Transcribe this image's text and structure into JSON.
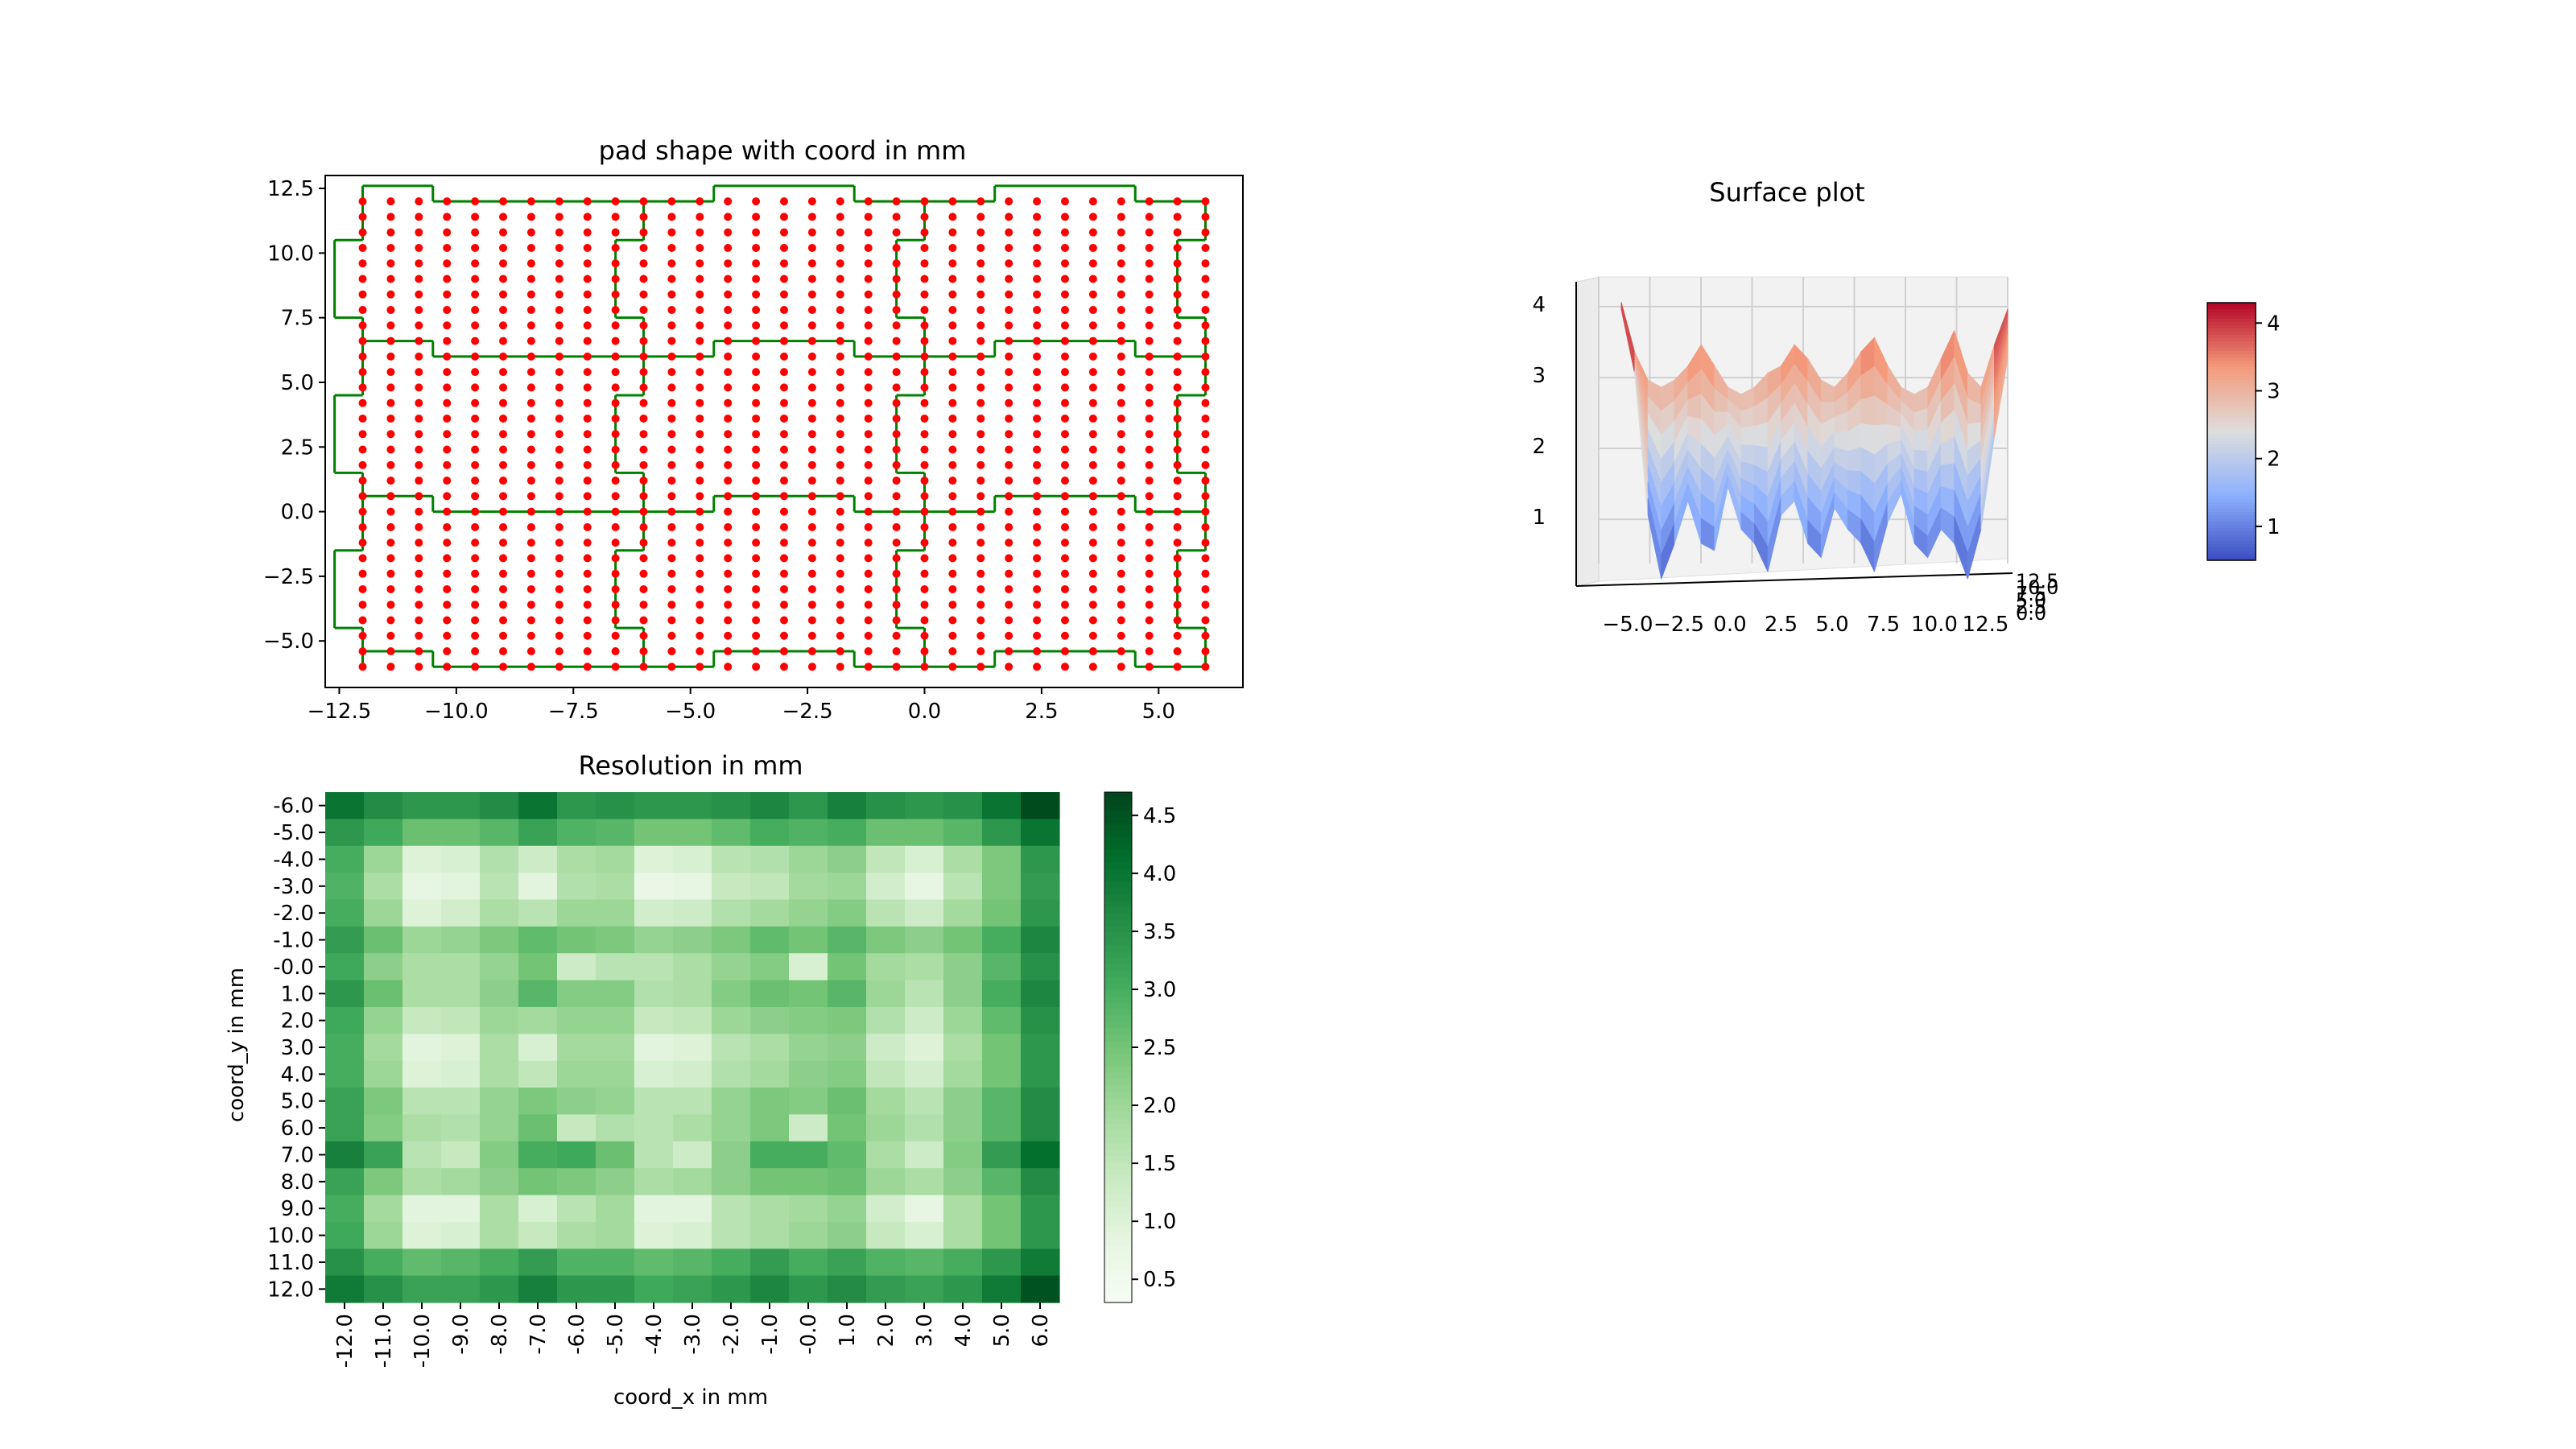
{
  "chart_data": [
    {
      "type": "scatter",
      "title": "pad shape with coord in mm",
      "xlim": [
        -12.8,
        6.8
      ],
      "ylim": [
        -6.8,
        13.0
      ],
      "x_ticks": [
        "−12.5",
        "−10.0",
        "−7.5",
        "−5.0",
        "−2.5",
        "0.0",
        "2.5",
        "5.0"
      ],
      "x_tick_values": [
        -12.5,
        -10,
        -7.5,
        -5,
        -2.5,
        0,
        2.5,
        5
      ],
      "y_ticks": [
        "12.5",
        "10.0",
        "7.5",
        "5.0",
        "2.5",
        "0.0",
        "−2.5",
        "−5.0"
      ],
      "y_tick_values": [
        12.5,
        10,
        7.5,
        5,
        2.5,
        0,
        -2.5,
        -5
      ],
      "points": {
        "x_min": -12,
        "x_max": 6,
        "x_step": 0.6,
        "y_min": -6,
        "y_max": 12,
        "y_step": 0.6,
        "color": "#ff0000"
      },
      "boundary_color": "#008000",
      "rows": [
        {
          "bottom": 6,
          "top": 12
        },
        {
          "bottom": 0,
          "top": 6
        },
        {
          "bottom": -6,
          "top": 0
        }
      ],
      "row_top_steps": [
        [
          -12,
          -10.5
        ],
        [
          -4.5,
          -1.5
        ],
        [
          1.5,
          4.5
        ]
      ],
      "left_edge": {
        "x": -12,
        "tab_x": -12.6,
        "tab_y": [
          1.5,
          4.5
        ]
      },
      "right_edge": {
        "x": 6,
        "tab_x": 5.4,
        "tab_y": [
          1.5,
          4.5
        ]
      },
      "column_boundaries": [
        {
          "x": -6,
          "tab_x": -6.6,
          "tab_y": [
            1.5,
            4.5
          ]
        },
        {
          "x": 0,
          "tab_x": -0.6,
          "tab_y": [
            1.5,
            4.5
          ]
        }
      ]
    },
    {
      "type": "heatmap",
      "title": "Resolution in mm",
      "xlabel": "coord_x in mm",
      "ylabel": "coord_y in mm",
      "x_categories": [
        "-12.0",
        "-11.0",
        "-10.0",
        "-9.0",
        "-8.0",
        "-7.0",
        "-6.0",
        "-5.0",
        "-4.0",
        "-3.0",
        "-2.0",
        "-1.0",
        "-0.0",
        "1.0",
        "2.0",
        "3.0",
        "4.0",
        "5.0",
        "6.0"
      ],
      "y_categories": [
        "-6.0",
        "-5.0",
        "-4.0",
        "-3.0",
        "-2.0",
        "-1.0",
        "-0.0",
        "1.0",
        "2.0",
        "3.0",
        "4.0",
        "5.0",
        "6.0",
        "7.0",
        "8.0",
        "9.0",
        "10.0",
        "11.0",
        "12.0"
      ],
      "values": [
        [
          4.0,
          3.6,
          3.4,
          3.4,
          3.6,
          4.0,
          3.4,
          3.5,
          3.4,
          3.4,
          3.5,
          3.7,
          3.4,
          3.8,
          3.5,
          3.4,
          3.5,
          4.0,
          4.6
        ],
        [
          3.4,
          3.1,
          2.6,
          2.6,
          2.8,
          3.2,
          2.9,
          2.8,
          2.5,
          2.5,
          2.7,
          3.0,
          2.9,
          3.0,
          2.6,
          2.6,
          2.8,
          3.4,
          4.0
        ],
        [
          3.0,
          2.0,
          1.0,
          1.1,
          1.7,
          1.3,
          1.8,
          1.9,
          1.0,
          1.1,
          1.6,
          1.7,
          2.0,
          2.2,
          1.5,
          1.1,
          1.8,
          2.4,
          3.4
        ],
        [
          2.9,
          1.8,
          0.8,
          0.9,
          1.6,
          0.9,
          1.7,
          1.8,
          0.7,
          0.8,
          1.4,
          1.5,
          1.9,
          2.0,
          1.2,
          0.8,
          1.6,
          2.4,
          3.3
        ],
        [
          3.0,
          2.0,
          1.0,
          1.2,
          1.8,
          1.6,
          2.0,
          2.0,
          1.2,
          1.3,
          1.7,
          1.9,
          2.1,
          2.3,
          1.6,
          1.3,
          1.9,
          2.5,
          3.4
        ],
        [
          3.3,
          2.6,
          2.0,
          2.1,
          2.4,
          2.7,
          2.5,
          2.4,
          2.1,
          2.2,
          2.4,
          2.7,
          2.5,
          2.8,
          2.4,
          2.2,
          2.5,
          3.0,
          3.7
        ],
        [
          3.1,
          2.2,
          1.8,
          1.8,
          2.1,
          2.5,
          1.3,
          1.6,
          1.6,
          1.8,
          2.1,
          2.3,
          1.1,
          2.5,
          1.9,
          1.8,
          2.2,
          2.8,
          3.5
        ],
        [
          3.4,
          2.6,
          1.8,
          1.8,
          2.2,
          2.8,
          2.3,
          2.3,
          1.7,
          1.8,
          2.3,
          2.6,
          2.5,
          2.8,
          2.0,
          1.6,
          2.2,
          3.0,
          3.7
        ],
        [
          3.1,
          2.1,
          1.4,
          1.5,
          2.0,
          1.9,
          2.1,
          2.1,
          1.4,
          1.5,
          2.0,
          2.2,
          2.3,
          2.4,
          1.7,
          1.3,
          2.0,
          2.7,
          3.5
        ],
        [
          3.0,
          1.9,
          0.9,
          1.0,
          1.8,
          1.1,
          1.9,
          1.9,
          0.9,
          1.0,
          1.6,
          1.8,
          2.1,
          2.2,
          1.3,
          1.0,
          1.8,
          2.5,
          3.4
        ],
        [
          3.0,
          2.0,
          1.0,
          1.1,
          1.8,
          1.5,
          2.0,
          2.0,
          1.1,
          1.2,
          1.7,
          1.9,
          2.2,
          2.3,
          1.5,
          1.2,
          1.9,
          2.5,
          3.4
        ],
        [
          3.2,
          2.4,
          1.6,
          1.6,
          2.1,
          2.4,
          2.2,
          2.1,
          1.6,
          1.6,
          2.1,
          2.4,
          2.3,
          2.6,
          1.9,
          1.6,
          2.2,
          2.8,
          3.6
        ],
        [
          3.2,
          2.3,
          1.8,
          1.7,
          2.1,
          2.6,
          1.4,
          1.7,
          1.6,
          1.8,
          2.1,
          2.4,
          1.3,
          2.5,
          2.0,
          1.7,
          2.2,
          2.8,
          3.6
        ],
        [
          3.8,
          3.2,
          1.6,
          1.4,
          2.3,
          3.0,
          3.1,
          2.6,
          1.6,
          1.3,
          2.2,
          3.0,
          3.0,
          2.7,
          1.8,
          1.3,
          2.3,
          3.3,
          4.1
        ],
        [
          3.2,
          2.4,
          1.8,
          1.9,
          2.2,
          2.5,
          2.4,
          2.2,
          1.8,
          1.9,
          2.2,
          2.5,
          2.5,
          2.6,
          2.0,
          1.8,
          2.2,
          2.8,
          3.6
        ],
        [
          3.0,
          1.9,
          0.9,
          0.9,
          1.8,
          1.1,
          1.6,
          1.9,
          0.9,
          0.9,
          1.6,
          1.8,
          1.9,
          2.1,
          1.2,
          0.8,
          1.8,
          2.5,
          3.4
        ],
        [
          3.1,
          2.0,
          1.0,
          1.1,
          1.8,
          1.4,
          1.8,
          1.9,
          1.0,
          1.1,
          1.6,
          1.8,
          2.0,
          2.2,
          1.4,
          1.1,
          1.8,
          2.5,
          3.4
        ],
        [
          3.5,
          3.0,
          2.7,
          2.8,
          3.0,
          3.3,
          2.9,
          2.9,
          2.7,
          2.8,
          3.0,
          3.3,
          3.0,
          3.2,
          2.9,
          2.8,
          3.0,
          3.4,
          3.9
        ],
        [
          3.9,
          3.5,
          3.2,
          3.2,
          3.4,
          3.8,
          3.4,
          3.4,
          3.1,
          3.2,
          3.4,
          3.7,
          3.4,
          3.6,
          3.3,
          3.2,
          3.4,
          3.9,
          4.5
        ]
      ],
      "colormap": "Greens",
      "vmin": 0.3,
      "vmax": 4.7,
      "colorbar_ticks": [
        "4.5",
        "4.0",
        "3.5",
        "3.0",
        "2.5",
        "2.0",
        "1.5",
        "1.0",
        "0.5"
      ],
      "colorbar_tick_values": [
        4.5,
        4.0,
        3.5,
        3.0,
        2.5,
        2.0,
        1.5,
        1.0,
        0.5
      ]
    },
    {
      "type": "surface",
      "title": "Surface plot",
      "x_ticks": [
        "−5.0",
        "−2.5",
        "0.0",
        "2.5",
        "5.0",
        "7.5",
        "10.0",
        "12.5"
      ],
      "y_ticks": [
        "12.5",
        "10.0",
        "7.5",
        "5.0",
        "2.5",
        "0.0"
      ],
      "z_ticks": [
        "4",
        "3",
        "2",
        "1"
      ],
      "z_tick_values": [
        4,
        3,
        2,
        1
      ],
      "zlim": [
        0.4,
        4.6
      ],
      "colormap": "coolwarm",
      "front_profile": [
        4.3,
        3.4,
        1.4,
        0.5,
        1.0,
        1.6,
        1.0,
        0.9,
        1.8,
        1.2,
        1.0,
        0.6,
        1.4,
        1.6,
        1.0,
        0.8,
        1.5,
        1.2,
        1.0,
        0.6,
        1.3,
        1.7,
        1.0,
        0.8,
        1.2,
        1.0,
        0.5,
        1.2,
        2.5,
        3.6
      ],
      "back_profile": [
        4.2,
        3.5,
        3.1,
        3.0,
        3.1,
        3.3,
        3.6,
        3.3,
        3.0,
        2.9,
        3.0,
        3.2,
        3.3,
        3.6,
        3.4,
        3.1,
        3.0,
        3.2,
        3.5,
        3.7,
        3.3,
        3.0,
        2.9,
        3.0,
        3.4,
        3.8,
        3.2,
        3.0,
        3.6,
        4.1
      ],
      "colorbar_ticks": [
        "4",
        "3",
        "2",
        "1"
      ],
      "colorbar_tick_values": [
        4,
        3,
        2,
        1
      ],
      "colorbar_range": [
        0.5,
        4.3
      ]
    }
  ]
}
